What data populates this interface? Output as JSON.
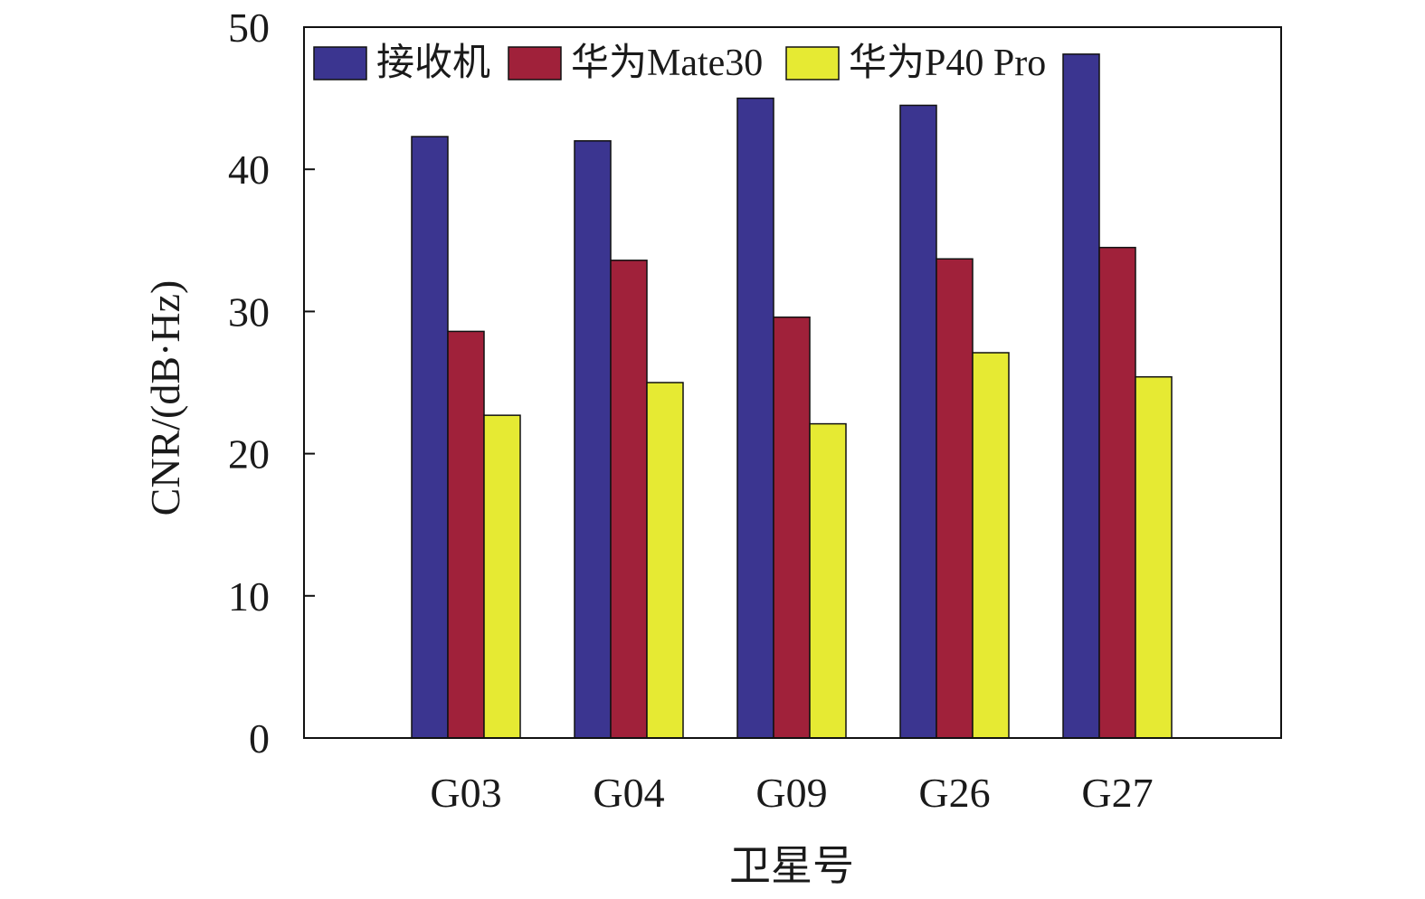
{
  "chart_data": {
    "type": "bar",
    "title": "",
    "xlabel": "卫星号",
    "ylabel": "CNR/(dB·Hz)",
    "categories": [
      "G03",
      "G04",
      "G09",
      "G26",
      "G27"
    ],
    "series": [
      {
        "name": "接收机",
        "color": "#3b3590",
        "values": [
          42.3,
          42.0,
          45.0,
          44.5,
          48.1
        ]
      },
      {
        "name": "华为Mate30",
        "color": "#a0213a",
        "values": [
          28.6,
          33.6,
          29.6,
          33.7,
          34.5
        ]
      },
      {
        "name": "华为P40 Pro",
        "color": "#e6ea33",
        "values": [
          22.7,
          25.0,
          22.1,
          27.1,
          25.4
        ]
      }
    ],
    "ylim": [
      0,
      50
    ],
    "yticks": [
      0,
      10,
      20,
      30,
      40,
      50
    ],
    "grid": false,
    "legend": "top-left, horizontal"
  }
}
